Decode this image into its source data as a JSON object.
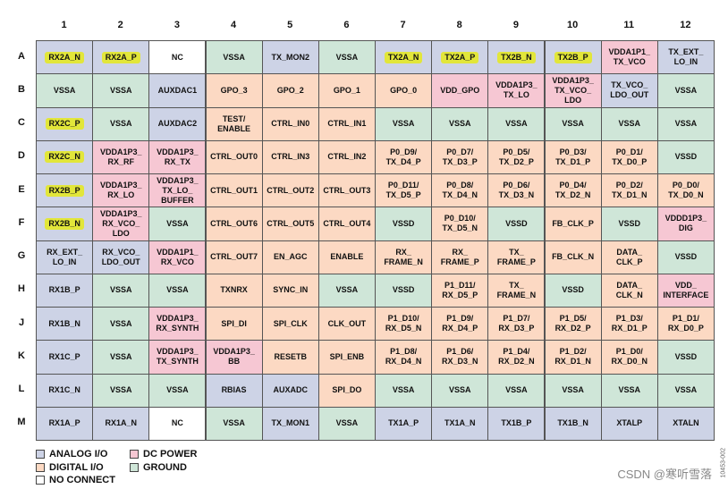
{
  "columns": [
    "1",
    "2",
    "3",
    "4",
    "5",
    "6",
    "7",
    "8",
    "9",
    "10",
    "11",
    "12"
  ],
  "rows": [
    "A",
    "B",
    "C",
    "D",
    "E",
    "F",
    "G",
    "H",
    "J",
    "K",
    "L",
    "M"
  ],
  "colors": {
    "analog": "#cdd3e6",
    "digital": "#fcd9c3",
    "dc_power": "#f6c7d3",
    "ground": "#cfe6d8",
    "no_connect": "#ffffff",
    "highlight": "#e2e63a"
  },
  "cells": [
    [
      [
        "RX2A_N",
        "a",
        1
      ],
      [
        "RX2A_P",
        "a",
        1
      ],
      [
        "NC",
        "n"
      ],
      [
        "VSSA",
        "g"
      ],
      [
        "TX_MON2",
        "a"
      ],
      [
        "VSSA",
        "g"
      ],
      [
        "TX2A_N",
        "a",
        1
      ],
      [
        "TX2A_P",
        "a",
        1
      ],
      [
        "TX2B_N",
        "a",
        1
      ],
      [
        "TX2B_P",
        "a",
        1
      ],
      [
        "VDDA1P1_\nTX_VCO",
        "p"
      ],
      [
        "TX_EXT_\nLO_IN",
        "a"
      ]
    ],
    [
      [
        "VSSA",
        "g"
      ],
      [
        "VSSA",
        "g"
      ],
      [
        "AUXDAC1",
        "a"
      ],
      [
        "GPO_3",
        "d"
      ],
      [
        "GPO_2",
        "d"
      ],
      [
        "GPO_1",
        "d"
      ],
      [
        "GPO_0",
        "d"
      ],
      [
        "VDD_GPO",
        "p"
      ],
      [
        "VDDA1P3_\nTX_LO",
        "p"
      ],
      [
        "VDDA1P3_\nTX_VCO_\nLDO",
        "p"
      ],
      [
        "TX_VCO_\nLDO_OUT",
        "a"
      ],
      [
        "VSSA",
        "g"
      ]
    ],
    [
      [
        "RX2C_P",
        "a",
        1
      ],
      [
        "VSSA",
        "g"
      ],
      [
        "AUXDAC2",
        "a"
      ],
      [
        "TEST/\nENABLE",
        "d"
      ],
      [
        "CTRL_IN0",
        "d"
      ],
      [
        "CTRL_IN1",
        "d"
      ],
      [
        "VSSA",
        "g"
      ],
      [
        "VSSA",
        "g"
      ],
      [
        "VSSA",
        "g"
      ],
      [
        "VSSA",
        "g"
      ],
      [
        "VSSA",
        "g"
      ],
      [
        "VSSA",
        "g"
      ]
    ],
    [
      [
        "RX2C_N",
        "a",
        1
      ],
      [
        "VDDA1P3_\nRX_RF",
        "p"
      ],
      [
        "VDDA1P3_\nRX_TX",
        "p"
      ],
      [
        "CTRL_OUT0",
        "d"
      ],
      [
        "CTRL_IN3",
        "d"
      ],
      [
        "CTRL_IN2",
        "d"
      ],
      [
        "P0_D9/\nTX_D4_P",
        "d"
      ],
      [
        "P0_D7/\nTX_D3_P",
        "d"
      ],
      [
        "P0_D5/\nTX_D2_P",
        "d"
      ],
      [
        "P0_D3/\nTX_D1_P",
        "d"
      ],
      [
        "P0_D1/\nTX_D0_P",
        "d"
      ],
      [
        "VSSD",
        "g"
      ]
    ],
    [
      [
        "RX2B_P",
        "a",
        1
      ],
      [
        "VDDA1P3_\nRX_LO",
        "p"
      ],
      [
        "VDDA1P3_\nTX_LO_\nBUFFER",
        "p"
      ],
      [
        "CTRL_OUT1",
        "d"
      ],
      [
        "CTRL_OUT2",
        "d"
      ],
      [
        "CTRL_OUT3",
        "d"
      ],
      [
        "P0_D11/\nTX_D5_P",
        "d"
      ],
      [
        "P0_D8/\nTX_D4_N",
        "d"
      ],
      [
        "P0_D6/\nTX_D3_N",
        "d"
      ],
      [
        "P0_D4/\nTX_D2_N",
        "d"
      ],
      [
        "P0_D2/\nTX_D1_N",
        "d"
      ],
      [
        "P0_D0/\nTX_D0_N",
        "d"
      ]
    ],
    [
      [
        "RX2B_N",
        "a",
        1
      ],
      [
        "VDDA1P3_\nRX_VCO_\nLDO",
        "p"
      ],
      [
        "VSSA",
        "g"
      ],
      [
        "CTRL_OUT6",
        "d"
      ],
      [
        "CTRL_OUT5",
        "d"
      ],
      [
        "CTRL_OUT4",
        "d"
      ],
      [
        "VSSD",
        "g"
      ],
      [
        "P0_D10/\nTX_D5_N",
        "d"
      ],
      [
        "VSSD",
        "g"
      ],
      [
        "FB_CLK_P",
        "d"
      ],
      [
        "VSSD",
        "g"
      ],
      [
        "VDDD1P3_\nDIG",
        "p"
      ]
    ],
    [
      [
        "RX_EXT_\nLO_IN",
        "a"
      ],
      [
        "RX_VCO_\nLDO_OUT",
        "a"
      ],
      [
        "VDDA1P1_\nRX_VCO",
        "p"
      ],
      [
        "CTRL_OUT7",
        "d"
      ],
      [
        "EN_AGC",
        "d"
      ],
      [
        "ENABLE",
        "d"
      ],
      [
        "RX_\nFRAME_N",
        "d"
      ],
      [
        "RX_\nFRAME_P",
        "d"
      ],
      [
        "TX_\nFRAME_P",
        "d"
      ],
      [
        "FB_CLK_N",
        "d"
      ],
      [
        "DATA_\nCLK_P",
        "d"
      ],
      [
        "VSSD",
        "g"
      ]
    ],
    [
      [
        "RX1B_P",
        "a"
      ],
      [
        "VSSA",
        "g"
      ],
      [
        "VSSA",
        "g"
      ],
      [
        "TXNRX",
        "d"
      ],
      [
        "SYNC_IN",
        "d"
      ],
      [
        "VSSA",
        "g"
      ],
      [
        "VSSD",
        "g"
      ],
      [
        "P1_D11/\nRX_D5_P",
        "d"
      ],
      [
        "TX_\nFRAME_N",
        "d"
      ],
      [
        "VSSD",
        "g"
      ],
      [
        "DATA_\nCLK_N",
        "d"
      ],
      [
        "VDD_\nINTERFACE",
        "p"
      ]
    ],
    [
      [
        "RX1B_N",
        "a"
      ],
      [
        "VSSA",
        "g"
      ],
      [
        "VDDA1P3_\nRX_SYNTH",
        "p"
      ],
      [
        "SPI_DI",
        "d"
      ],
      [
        "SPI_CLK",
        "d"
      ],
      [
        "CLK_OUT",
        "d"
      ],
      [
        "P1_D10/\nRX_D5_N",
        "d"
      ],
      [
        "P1_D9/\nRX_D4_P",
        "d"
      ],
      [
        "P1_D7/\nRX_D3_P",
        "d"
      ],
      [
        "P1_D5/\nRX_D2_P",
        "d"
      ],
      [
        "P1_D3/\nRX_D1_P",
        "d"
      ],
      [
        "P1_D1/\nRX_D0_P",
        "d"
      ]
    ],
    [
      [
        "RX1C_P",
        "a"
      ],
      [
        "VSSA",
        "g"
      ],
      [
        "VDDA1P3_\nTX_SYNTH",
        "p"
      ],
      [
        "VDDA1P3_\nBB",
        "p"
      ],
      [
        "RESETB",
        "d"
      ],
      [
        "SPI_ENB",
        "d"
      ],
      [
        "P1_D8/\nRX_D4_N",
        "d"
      ],
      [
        "P1_D6/\nRX_D3_N",
        "d"
      ],
      [
        "P1_D4/\nRX_D2_N",
        "d"
      ],
      [
        "P1_D2/\nRX_D1_N",
        "d"
      ],
      [
        "P1_D0/\nRX_D0_N",
        "d"
      ],
      [
        "VSSD",
        "g"
      ]
    ],
    [
      [
        "RX1C_N",
        "a"
      ],
      [
        "VSSA",
        "g"
      ],
      [
        "VSSA",
        "g"
      ],
      [
        "RBIAS",
        "a"
      ],
      [
        "AUXADC",
        "a"
      ],
      [
        "SPI_DO",
        "d"
      ],
      [
        "VSSA",
        "g"
      ],
      [
        "VSSA",
        "g"
      ],
      [
        "VSSA",
        "g"
      ],
      [
        "VSSA",
        "g"
      ],
      [
        "VSSA",
        "g"
      ],
      [
        "VSSA",
        "g"
      ]
    ],
    [
      [
        "RX1A_P",
        "a"
      ],
      [
        "RX1A_N",
        "a"
      ],
      [
        "NC",
        "n"
      ],
      [
        "VSSA",
        "g"
      ],
      [
        "TX_MON1",
        "a"
      ],
      [
        "VSSA",
        "g"
      ],
      [
        "TX1A_P",
        "a"
      ],
      [
        "TX1A_N",
        "a"
      ],
      [
        "TX1B_P",
        "a"
      ],
      [
        "TX1B_N",
        "a"
      ],
      [
        "XTALP",
        "a"
      ],
      [
        "XTALN",
        "a"
      ]
    ]
  ],
  "legend": {
    "analog": "ANALOG I/O",
    "dc_power": "DC POWER",
    "digital": "DIGITAL I/O",
    "ground": "GROUND",
    "no_connect": "NO CONNECT"
  },
  "watermark": "CSDN @寒听雪落",
  "figure_id": "10453-002"
}
